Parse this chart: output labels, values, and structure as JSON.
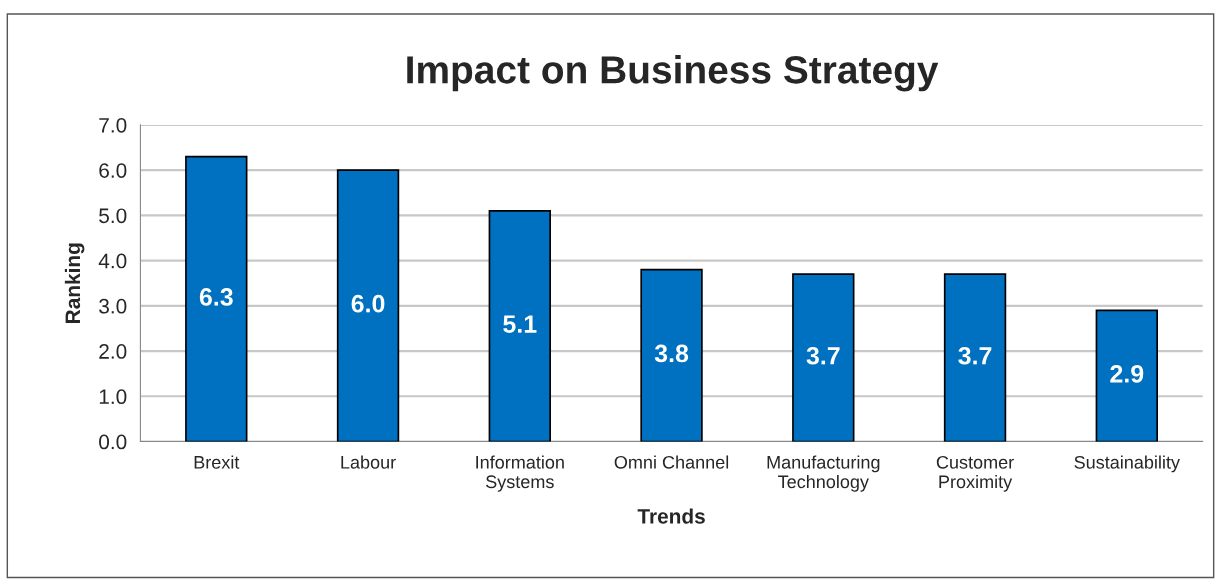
{
  "chart_data": {
    "type": "bar",
    "title": "Impact on Business Strategy",
    "xlabel": "Trends",
    "ylabel": "Ranking",
    "categories": [
      "Brexit",
      "Labour",
      "Information\nSystems",
      "Omni Channel",
      "Manufacturing\nTechnology",
      "Customer\nProximity",
      "Sustainability"
    ],
    "values": [
      6.3,
      6.0,
      5.1,
      3.8,
      3.7,
      3.7,
      2.9
    ],
    "value_labels": [
      "6.3",
      "6.0",
      "5.1",
      "3.8",
      "3.7",
      "3.7",
      "2.9"
    ],
    "color": "#0070c0",
    "ylim": [
      0,
      7
    ],
    "yticks": [
      {
        "value": 0,
        "label": "0.0"
      },
      {
        "value": 1,
        "label": "1.0"
      },
      {
        "value": 2,
        "label": "2.0"
      },
      {
        "value": 3,
        "label": "3.0"
      },
      {
        "value": 4,
        "label": "4.0"
      },
      {
        "value": 5,
        "label": "5.0"
      },
      {
        "value": 6,
        "label": "6.0"
      },
      {
        "value": 7,
        "label": "7.0"
      }
    ],
    "grid": "y"
  }
}
